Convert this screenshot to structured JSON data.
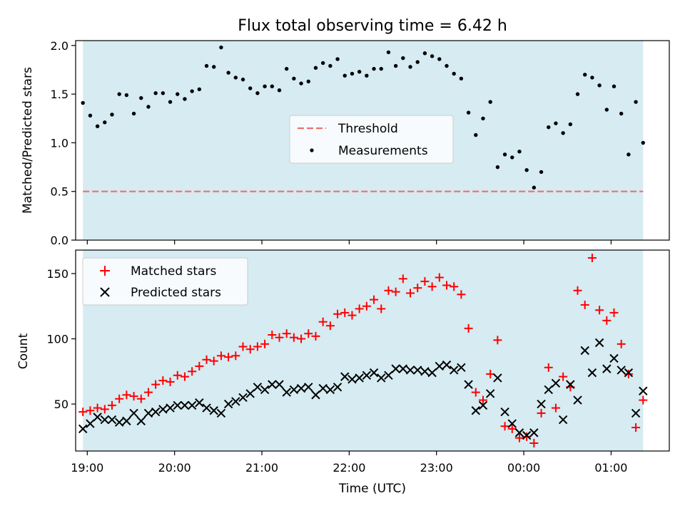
{
  "chart_data": [
    {
      "type": "scatter",
      "title": "Flux total observing time = 6.42 h",
      "ylabel": "Matched/Predicted stars",
      "xlabel": "",
      "x_axis_type": "time",
      "xlim": [
        "18:52",
        "01:40"
      ],
      "ylim": [
        0.0,
        2.05
      ],
      "yticks": [
        "0.0",
        "0.5",
        "1.0",
        "1.5",
        "2.0"
      ],
      "observing_window": [
        "18:57",
        "01:22"
      ],
      "threshold": {
        "name": "Threshold",
        "value": 0.5,
        "color": "#ef6f6f",
        "style": "dashed"
      },
      "legend": {
        "placement": "center-right",
        "entries": [
          "Threshold",
          "Measurements"
        ]
      },
      "series": [
        {
          "name": "Measurements",
          "color": "#000000",
          "marker": "dot",
          "x": [
            "18:57",
            "19:02",
            "19:07",
            "19:12",
            "19:17",
            "19:22",
            "19:27",
            "19:32",
            "19:37",
            "19:42",
            "19:47",
            "19:52",
            "19:57",
            "20:02",
            "20:07",
            "20:12",
            "20:17",
            "20:22",
            "20:27",
            "20:32",
            "20:37",
            "20:42",
            "20:47",
            "20:52",
            "20:57",
            "21:02",
            "21:07",
            "21:12",
            "21:17",
            "21:22",
            "21:27",
            "21:32",
            "21:37",
            "21:42",
            "21:47",
            "21:52",
            "21:57",
            "22:02",
            "22:07",
            "22:12",
            "22:17",
            "22:22",
            "22:27",
            "22:32",
            "22:37",
            "22:42",
            "22:47",
            "22:52",
            "22:57",
            "23:02",
            "23:07",
            "23:12",
            "23:17",
            "23:22",
            "23:27",
            "23:32",
            "23:37",
            "23:42",
            "23:47",
            "23:52",
            "23:57",
            "00:02",
            "00:07",
            "00:12",
            "00:17",
            "00:22",
            "00:27",
            "00:32",
            "00:37",
            "00:42",
            "00:47",
            "00:52",
            "00:57",
            "01:02",
            "01:07",
            "01:12",
            "01:17",
            "01:22"
          ],
          "values": [
            1.41,
            1.28,
            1.17,
            1.21,
            1.29,
            1.5,
            1.49,
            1.3,
            1.46,
            1.37,
            1.51,
            1.51,
            1.42,
            1.5,
            1.45,
            1.53,
            1.55,
            1.79,
            1.78,
            1.98,
            1.72,
            1.67,
            1.65,
            1.56,
            1.51,
            1.58,
            1.58,
            1.54,
            1.76,
            1.66,
            1.61,
            1.63,
            1.77,
            1.82,
            1.79,
            1.86,
            1.69,
            1.71,
            1.73,
            1.69,
            1.76,
            1.76,
            1.93,
            1.79,
            1.87,
            1.78,
            1.83,
            1.92,
            1.89,
            1.86,
            1.79,
            1.71,
            1.66,
            1.31,
            1.08,
            1.25,
            1.42,
            0.75,
            0.88,
            0.85,
            0.91,
            0.72,
            0.54,
            0.7,
            1.16,
            1.2,
            1.1,
            1.19,
            1.5,
            1.7,
            1.67,
            1.59,
            1.34,
            1.58,
            1.3,
            0.88,
            1.42,
            1.0
          ]
        }
      ]
    },
    {
      "type": "scatter",
      "title": "",
      "xlabel": "Time (UTC)",
      "ylabel": "Count",
      "x_axis_type": "time",
      "xlim": [
        "18:52",
        "01:40"
      ],
      "ylim": [
        14,
        168
      ],
      "xticks": [
        "19:00",
        "20:00",
        "21:00",
        "22:00",
        "23:00",
        "00:00",
        "01:00"
      ],
      "yticks": [
        "50",
        "100",
        "150"
      ],
      "observing_window": [
        "18:57",
        "01:22"
      ],
      "legend": {
        "placement": "top-left",
        "entries": [
          "Matched stars",
          "Predicted stars"
        ]
      },
      "series": [
        {
          "name": "Matched stars",
          "color": "#ff0000",
          "marker": "plus",
          "x": [
            "18:57",
            "19:02",
            "19:07",
            "19:12",
            "19:17",
            "19:22",
            "19:27",
            "19:32",
            "19:37",
            "19:42",
            "19:47",
            "19:52",
            "19:57",
            "20:02",
            "20:07",
            "20:12",
            "20:17",
            "20:22",
            "20:27",
            "20:32",
            "20:37",
            "20:42",
            "20:47",
            "20:52",
            "20:57",
            "21:02",
            "21:07",
            "21:12",
            "21:17",
            "21:22",
            "21:27",
            "21:32",
            "21:37",
            "21:42",
            "21:47",
            "21:52",
            "21:57",
            "22:02",
            "22:07",
            "22:12",
            "22:17",
            "22:22",
            "22:27",
            "22:32",
            "22:37",
            "22:42",
            "22:47",
            "22:52",
            "22:57",
            "23:02",
            "23:07",
            "23:12",
            "23:17",
            "23:22",
            "23:27",
            "23:32",
            "23:37",
            "23:42",
            "23:47",
            "23:52",
            "23:57",
            "00:02",
            "00:07",
            "00:12",
            "00:17",
            "00:22",
            "00:27",
            "00:32",
            "00:37",
            "00:42",
            "00:47",
            "00:52",
            "00:57",
            "01:02",
            "01:07",
            "01:12",
            "01:17",
            "01:22"
          ],
          "values": [
            44,
            45,
            47,
            46,
            49,
            54,
            57,
            56,
            54,
            59,
            65,
            68,
            67,
            72,
            71,
            75,
            79,
            84,
            83,
            87,
            86,
            87,
            94,
            92,
            94,
            96,
            103,
            101,
            104,
            101,
            100,
            104,
            102,
            113,
            110,
            119,
            120,
            118,
            123,
            125,
            130,
            123,
            137,
            136,
            146,
            135,
            139,
            144,
            140,
            147,
            141,
            140,
            134,
            108,
            59,
            53,
            73,
            99,
            33,
            31,
            24,
            25,
            20,
            43,
            78,
            47,
            71,
            63,
            137,
            126,
            162,
            122,
            114,
            120,
            96,
            73,
            32,
            53
          ]
        },
        {
          "name": "Predicted stars",
          "color": "#000000",
          "marker": "x",
          "x": [
            "18:57",
            "19:02",
            "19:07",
            "19:12",
            "19:17",
            "19:22",
            "19:27",
            "19:32",
            "19:37",
            "19:42",
            "19:47",
            "19:52",
            "19:57",
            "20:02",
            "20:07",
            "20:12",
            "20:17",
            "20:22",
            "20:27",
            "20:32",
            "20:37",
            "20:42",
            "20:47",
            "20:52",
            "20:57",
            "21:02",
            "21:07",
            "21:12",
            "21:17",
            "21:22",
            "21:27",
            "21:32",
            "21:37",
            "21:42",
            "21:47",
            "21:52",
            "21:57",
            "22:02",
            "22:07",
            "22:12",
            "22:17",
            "22:22",
            "22:27",
            "22:32",
            "22:37",
            "22:42",
            "22:47",
            "22:52",
            "22:57",
            "23:02",
            "23:07",
            "23:12",
            "23:17",
            "23:22",
            "23:27",
            "23:32",
            "23:37",
            "23:42",
            "23:47",
            "23:52",
            "23:57",
            "00:02",
            "00:07",
            "00:12",
            "00:17",
            "00:22",
            "00:27",
            "00:32",
            "00:37",
            "00:42",
            "00:47",
            "00:52",
            "00:57",
            "01:02",
            "01:07",
            "01:12",
            "01:17",
            "01:22"
          ],
          "values": [
            31,
            35,
            40,
            38,
            38,
            36,
            37,
            43,
            37,
            43,
            44,
            46,
            47,
            49,
            49,
            49,
            51,
            47,
            45,
            43,
            50,
            52,
            55,
            58,
            63,
            61,
            65,
            65,
            59,
            61,
            62,
            63,
            57,
            62,
            61,
            63,
            71,
            69,
            70,
            72,
            74,
            70,
            72,
            77,
            77,
            76,
            76,
            75,
            74,
            79,
            80,
            76,
            78,
            65,
            45,
            49,
            58,
            70,
            44,
            35,
            28,
            26,
            28,
            50,
            61,
            66,
            38,
            65,
            53,
            91,
            74,
            97,
            77,
            85,
            76,
            74,
            43,
            60
          ]
        }
      ]
    }
  ]
}
